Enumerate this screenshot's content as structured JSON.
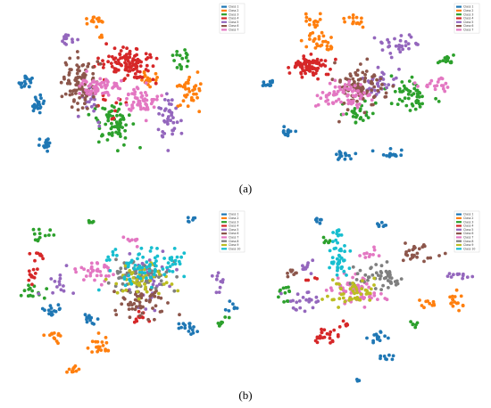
{
  "figure": {
    "captions": [
      "(a)",
      "(b)"
    ]
  },
  "chart_data": [
    {
      "type": "scatter",
      "panel": "a-left",
      "legend_position": "top-right",
      "series": [
        {
          "name": "Class 1",
          "color": "#1f77b4",
          "clusters": [
            [
              0.05,
              0.44,
              0.035,
              0.05,
              20
            ],
            [
              0.1,
              0.57,
              0.035,
              0.05,
              22
            ],
            [
              0.14,
              0.81,
              0.035,
              0.06,
              16
            ]
          ]
        },
        {
          "name": "Class 2",
          "color": "#ff7f0e",
          "clusters": [
            [
              0.37,
              0.08,
              0.05,
              0.035,
              14
            ],
            [
              0.62,
              0.41,
              0.045,
              0.06,
              18
            ],
            [
              0.82,
              0.49,
              0.07,
              0.1,
              36
            ],
            [
              0.4,
              0.18,
              0.02,
              0.02,
              4
            ]
          ]
        },
        {
          "name": "Class 3",
          "color": "#2ca02c",
          "clusters": [
            [
              0.78,
              0.31,
              0.07,
              0.08,
              16
            ],
            [
              0.47,
              0.68,
              0.1,
              0.13,
              70
            ]
          ]
        },
        {
          "name": "Class 4",
          "color": "#d62728",
          "clusters": [
            [
              0.54,
              0.33,
              0.14,
              0.11,
              110
            ],
            [
              0.45,
              0.6,
              0.08,
              0.1,
              10
            ]
          ]
        },
        {
          "name": "Class 5",
          "color": "#9467bd",
          "clusters": [
            [
              0.25,
              0.19,
              0.06,
              0.03,
              14
            ],
            [
              0.72,
              0.63,
              0.06,
              0.18,
              40
            ],
            [
              0.35,
              0.58,
              0.07,
              0.12,
              18
            ]
          ]
        },
        {
          "name": "Class 6",
          "color": "#8c564b",
          "clusters": [
            [
              0.3,
              0.45,
              0.09,
              0.16,
              90
            ]
          ]
        },
        {
          "name": "Class 7",
          "color": "#e377c2",
          "clusters": [
            [
              0.4,
              0.47,
              0.12,
              0.07,
              65
            ],
            [
              0.6,
              0.54,
              0.1,
              0.1,
              55
            ]
          ]
        }
      ]
    },
    {
      "type": "scatter",
      "panel": "a-right",
      "legend_position": "top-right",
      "series": [
        {
          "name": "Class 1",
          "color": "#1f77b4",
          "clusters": [
            [
              0.06,
              0.45,
              0.04,
              0.025,
              12
            ],
            [
              0.14,
              0.73,
              0.04,
              0.03,
              14
            ],
            [
              0.39,
              0.86,
              0.05,
              0.03,
              16
            ],
            [
              0.59,
              0.86,
              0.05,
              0.03,
              16
            ]
          ]
        },
        {
          "name": "Class 2",
          "color": "#ff7f0e",
          "clusters": [
            [
              0.26,
              0.08,
              0.05,
              0.04,
              14
            ],
            [
              0.44,
              0.08,
              0.06,
              0.04,
              14
            ],
            [
              0.28,
              0.19,
              0.07,
              0.05,
              22
            ],
            [
              0.33,
              0.24,
              0.03,
              0.02,
              6
            ]
          ]
        },
        {
          "name": "Class 3",
          "color": "#2ca02c",
          "clusters": [
            [
              0.85,
              0.31,
              0.06,
              0.03,
              14
            ],
            [
              0.68,
              0.52,
              0.09,
              0.12,
              50
            ],
            [
              0.45,
              0.62,
              0.08,
              0.08,
              25
            ]
          ]
        },
        {
          "name": "Class 4",
          "color": "#d62728",
          "clusters": [
            [
              0.26,
              0.35,
              0.09,
              0.07,
              80
            ]
          ]
        },
        {
          "name": "Class 5",
          "color": "#9467bd",
          "clusters": [
            [
              0.62,
              0.22,
              0.1,
              0.07,
              30
            ],
            [
              0.55,
              0.45,
              0.1,
              0.09,
              35
            ]
          ]
        },
        {
          "name": "Class 6",
          "color": "#8c564b",
          "clusters": [
            [
              0.46,
              0.46,
              0.12,
              0.14,
              90
            ]
          ]
        },
        {
          "name": "Class 7",
          "color": "#e377c2",
          "clusters": [
            [
              0.8,
              0.45,
              0.07,
              0.04,
              20
            ],
            [
              0.4,
              0.52,
              0.13,
              0.09,
              70
            ]
          ]
        }
      ]
    },
    {
      "type": "scatter",
      "panel": "b-left",
      "legend_position": "top-right",
      "series": [
        {
          "name": "Class 1",
          "color": "#1f77b4",
          "clusters": [
            [
              0.18,
              0.58,
              0.04,
              0.04,
              14
            ],
            [
              0.33,
              0.64,
              0.04,
              0.04,
              12
            ],
            [
              0.76,
              0.68,
              0.04,
              0.05,
              16
            ],
            [
              0.78,
              0.05,
              0.03,
              0.02,
              6
            ],
            [
              0.96,
              0.55,
              0.03,
              0.05,
              8
            ]
          ]
        },
        {
          "name": "Class 2",
          "color": "#ff7f0e",
          "clusters": [
            [
              0.18,
              0.73,
              0.05,
              0.04,
              12
            ],
            [
              0.37,
              0.78,
              0.07,
              0.06,
              20
            ],
            [
              0.26,
              0.92,
              0.05,
              0.03,
              10
            ]
          ]
        },
        {
          "name": "Class 3",
          "color": "#2ca02c",
          "clusters": [
            [
              0.09,
              0.47,
              0.05,
              0.05,
              14
            ],
            [
              0.13,
              0.15,
              0.06,
              0.04,
              12
            ],
            [
              0.93,
              0.64,
              0.05,
              0.04,
              8
            ],
            [
              0.34,
              0.06,
              0.03,
              0.03,
              6
            ]
          ]
        },
        {
          "name": "Class 4",
          "color": "#d62728",
          "clusters": [
            [
              0.08,
              0.38,
              0.04,
              0.05,
              12
            ],
            [
              0.11,
              0.27,
              0.04,
              0.03,
              8
            ],
            [
              0.55,
              0.62,
              0.05,
              0.05,
              10
            ]
          ]
        },
        {
          "name": "Class 5",
          "color": "#9467bd",
          "clusters": [
            [
              0.58,
              0.4,
              0.12,
              0.2,
              40
            ],
            [
              0.2,
              0.44,
              0.08,
              0.08,
              14
            ],
            [
              0.9,
              0.4,
              0.04,
              0.08,
              10
            ]
          ]
        },
        {
          "name": "Class 6",
          "color": "#8c564b",
          "clusters": [
            [
              0.58,
              0.53,
              0.13,
              0.11,
              55
            ]
          ]
        },
        {
          "name": "Class 7",
          "color": "#e377c2",
          "clusters": [
            [
              0.34,
              0.35,
              0.09,
              0.06,
              35
            ],
            [
              0.53,
              0.17,
              0.05,
              0.03,
              8
            ]
          ]
        },
        {
          "name": "Class 8",
          "color": "#7f7f7f",
          "clusters": [
            [
              0.56,
              0.38,
              0.15,
              0.11,
              65
            ]
          ]
        },
        {
          "name": "Class 9",
          "color": "#bcbd22",
          "clusters": [
            [
              0.55,
              0.4,
              0.13,
              0.1,
              50
            ]
          ]
        },
        {
          "name": "Class 10",
          "color": "#17becf",
          "clusters": [
            [
              0.55,
              0.33,
              0.18,
              0.12,
              65
            ],
            [
              0.72,
              0.28,
              0.06,
              0.06,
              16
            ]
          ]
        }
      ]
    },
    {
      "type": "scatter",
      "panel": "b-right",
      "legend_position": "top-right",
      "series": [
        {
          "name": "Class 1",
          "color": "#1f77b4",
          "clusters": [
            [
              0.3,
              0.06,
              0.03,
              0.02,
              6
            ],
            [
              0.57,
              0.08,
              0.04,
              0.03,
              8
            ],
            [
              0.56,
              0.74,
              0.06,
              0.04,
              14
            ],
            [
              0.6,
              0.85,
              0.04,
              0.03,
              8
            ],
            [
              0.47,
              0.98,
              0.03,
              0.01,
              3
            ]
          ]
        },
        {
          "name": "Class 2",
          "color": "#ff7f0e",
          "clusters": [
            [
              0.9,
              0.52,
              0.05,
              0.05,
              16
            ],
            [
              0.77,
              0.54,
              0.04,
              0.04,
              10
            ]
          ]
        },
        {
          "name": "Class 3",
          "color": "#2ca02c",
          "clusters": [
            [
              0.15,
              0.49,
              0.04,
              0.06,
              12
            ],
            [
              0.33,
              0.18,
              0.03,
              0.02,
              6
            ],
            [
              0.72,
              0.66,
              0.04,
              0.03,
              6
            ]
          ]
        },
        {
          "name": "Class 4",
          "color": "#d62728",
          "clusters": [
            [
              0.32,
              0.73,
              0.07,
              0.06,
              22
            ],
            [
              0.43,
              0.66,
              0.03,
              0.03,
              6
            ],
            [
              0.27,
              0.4,
              0.03,
              0.02,
              4
            ]
          ]
        },
        {
          "name": "Class 5",
          "color": "#9467bd",
          "clusters": [
            [
              0.25,
              0.53,
              0.08,
              0.06,
              22
            ],
            [
              0.9,
              0.38,
              0.06,
              0.03,
              12
            ],
            [
              0.25,
              0.33,
              0.05,
              0.05,
              10
            ]
          ]
        },
        {
          "name": "Class 6",
          "color": "#8c564b",
          "clusters": [
            [
              0.73,
              0.24,
              0.1,
              0.07,
              28
            ],
            [
              0.18,
              0.36,
              0.04,
              0.03,
              8
            ]
          ]
        },
        {
          "name": "Class 7",
          "color": "#e377c2",
          "clusters": [
            [
              0.46,
              0.46,
              0.12,
              0.1,
              60
            ],
            [
              0.52,
              0.26,
              0.05,
              0.04,
              10
            ]
          ]
        },
        {
          "name": "Class 8",
          "color": "#7f7f7f",
          "clusters": [
            [
              0.56,
              0.38,
              0.11,
              0.08,
              50
            ]
          ]
        },
        {
          "name": "Class 9",
          "color": "#bcbd22",
          "clusters": [
            [
              0.44,
              0.48,
              0.12,
              0.1,
              45
            ]
          ]
        },
        {
          "name": "Class 10",
          "color": "#17becf",
          "clusters": [
            [
              0.39,
              0.28,
              0.06,
              0.14,
              40
            ],
            [
              0.38,
              0.13,
              0.03,
              0.04,
              8
            ]
          ]
        }
      ]
    }
  ]
}
